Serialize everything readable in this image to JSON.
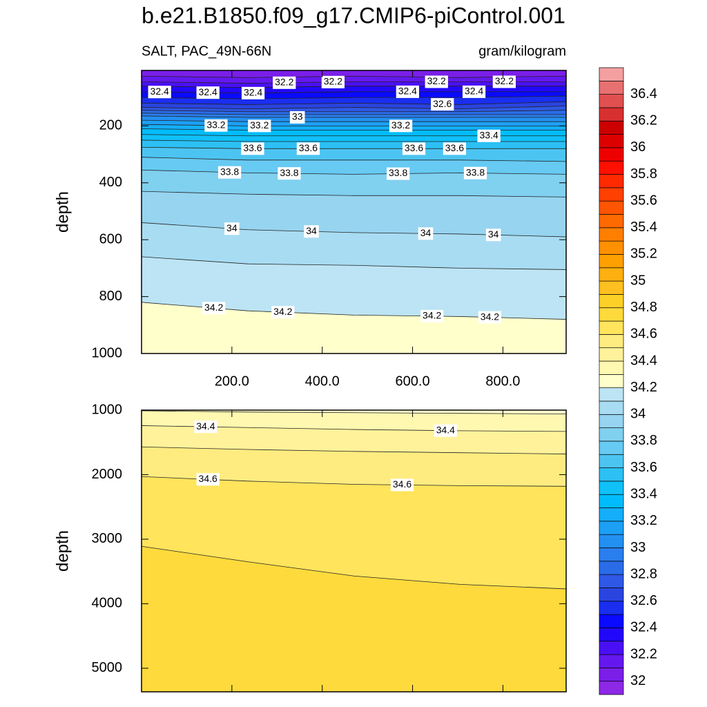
{
  "chart_data": [
    {
      "type": "contour",
      "title": "b.e21.B1850.f09_g17.CMIP6-piControl.001",
      "subtitle_left": "SALT, PAC_49N-66N",
      "subtitle_right": "gram/kilogram",
      "y_label": "depth",
      "xlim": [
        0,
        940
      ],
      "ylim": [
        5,
        1000
      ],
      "xticks": [
        {
          "value": 200,
          "label": "200.0"
        },
        {
          "value": 400,
          "label": "400.0"
        },
        {
          "value": 600,
          "label": "600.0"
        },
        {
          "value": 800,
          "label": "800.0"
        }
      ],
      "yticks": [
        200,
        400,
        600,
        800,
        1000
      ],
      "x": [
        0,
        235,
        470,
        705,
        940
      ],
      "contours": [
        {
          "level": 32.1,
          "depths": [
            25,
            30,
            25,
            30,
            25
          ]
        },
        {
          "level": 32.2,
          "depths": [
            45,
            50,
            45,
            45,
            45
          ],
          "label_x": [
            316,
            424,
            653,
            803
          ]
        },
        {
          "level": 32.3,
          "depths": [
            60,
            65,
            60,
            60,
            60
          ]
        },
        {
          "level": 32.4,
          "depths": [
            80,
            85,
            80,
            80,
            80
          ],
          "label_x": [
            40,
            147,
            247,
            589,
            736
          ]
        },
        {
          "level": 32.5,
          "depths": [
            100,
            105,
            100,
            100,
            95
          ]
        },
        {
          "level": 32.6,
          "depths": [
            120,
            125,
            120,
            125,
            115
          ],
          "label_x": [
            666
          ]
        },
        {
          "level": 32.7,
          "depths": [
            135,
            140,
            135,
            140,
            130
          ]
        },
        {
          "level": 32.8,
          "depths": [
            145,
            150,
            150,
            150,
            145
          ]
        },
        {
          "level": 32.9,
          "depths": [
            155,
            160,
            160,
            160,
            160
          ]
        },
        {
          "level": 33,
          "depths": [
            165,
            170,
            170,
            170,
            170
          ],
          "label_x": [
            345
          ]
        },
        {
          "level": 33.1,
          "depths": [
            180,
            185,
            185,
            185,
            185
          ]
        },
        {
          "level": 33.2,
          "depths": [
            195,
            200,
            200,
            200,
            200
          ],
          "label_x": [
            165,
            261,
            574
          ]
        },
        {
          "level": 33.3,
          "depths": [
            210,
            215,
            215,
            215,
            215
          ]
        },
        {
          "level": 33.4,
          "depths": [
            230,
            235,
            235,
            235,
            235
          ],
          "label_x": [
            769
          ]
        },
        {
          "level": 33.5,
          "depths": [
            250,
            255,
            255,
            255,
            255
          ]
        },
        {
          "level": 33.6,
          "depths": [
            275,
            280,
            280,
            280,
            280
          ],
          "label_x": [
            246,
            369,
            603,
            693
          ]
        },
        {
          "level": 33.7,
          "depths": [
            310,
            320,
            320,
            320,
            325
          ]
        },
        {
          "level": 33.8,
          "depths": [
            355,
            365,
            370,
            365,
            370
          ],
          "label_x": [
            195,
            327,
            568,
            739
          ]
        },
        {
          "level": 33.9,
          "depths": [
            430,
            440,
            445,
            445,
            450
          ]
        },
        {
          "level": 34,
          "depths": [
            540,
            565,
            575,
            580,
            590
          ],
          "label_x": [
            200,
            376,
            629,
            779
          ]
        },
        {
          "level": 34.1,
          "depths": [
            660,
            685,
            690,
            700,
            705
          ]
        },
        {
          "level": 34.2,
          "depths": [
            820,
            850,
            865,
            870,
            880
          ],
          "label_x": [
            160,
            313,
            643,
            771
          ]
        }
      ],
      "colorbar": {
        "levels": [
          31.9,
          32,
          32.1,
          32.2,
          32.3,
          32.4,
          32.5,
          32.6,
          32.7,
          32.8,
          32.9,
          33,
          33.1,
          33.2,
          33.3,
          33.4,
          33.5,
          33.6,
          33.7,
          33.8,
          33.9,
          34,
          34.1,
          34.2,
          34.3,
          34.4,
          34.5,
          34.6,
          34.7,
          34.8,
          34.9,
          35,
          35.1,
          35.2,
          35.3,
          35.4,
          35.5,
          35.6,
          35.7,
          35.8,
          35.9,
          36,
          36.1,
          36.2,
          36.3,
          36.4,
          36.5,
          36.6
        ],
        "colors": [
          "#8c28e6",
          "#7a1ee8",
          "#6418ef",
          "#4a10f5",
          "#2208fa",
          "#0a0aff",
          "#1a2ef0",
          "#2a44e0",
          "#2e58e6",
          "#2a6ce8",
          "#2a7eee",
          "#2290f2",
          "#1ca0f6",
          "#14aefa",
          "#00bcfc",
          "#10c0f8",
          "#2cc0f4",
          "#4cc4f2",
          "#66caf2",
          "#80d0f0",
          "#96d4f0",
          "#a8dcf2",
          "#bce4f4",
          "#ffffcc",
          "#fff8b0",
          "#fff29a",
          "#ffec80",
          "#ffe45c",
          "#ffda3c",
          "#fdd028",
          "#fdc020",
          "#fdb010",
          "#ffa000",
          "#ff9000",
          "#ff8000",
          "#ff6a00",
          "#ff5500",
          "#ff4000",
          "#ff2a00",
          "#ff1000",
          "#ee0000",
          "#dd0000",
          "#cc0000",
          "#d83030",
          "#e05050",
          "#e87070",
          "#f4a0a0"
        ],
        "labels": [
          32,
          32.2,
          32.4,
          32.6,
          32.8,
          33,
          33.2,
          33.4,
          33.6,
          33.8,
          34,
          34.2,
          34.4,
          34.6,
          34.8,
          35,
          35.2,
          35.4,
          35.6,
          35.8,
          36,
          36.2,
          36.4
        ]
      }
    },
    {
      "type": "contour",
      "y_label": "depth",
      "xlim": [
        0,
        940
      ],
      "ylim": [
        1000,
        5365
      ],
      "yticks": [
        1000,
        2000,
        3000,
        4000,
        5000
      ],
      "x": [
        0,
        235,
        470,
        705,
        940
      ],
      "contours": [
        {
          "level": 34.3,
          "depths": [
            1010,
            1030,
            1040,
            1050,
            1060
          ]
        },
        {
          "level": 34.4,
          "depths": [
            1240,
            1270,
            1300,
            1320,
            1330
          ],
          "label_x": [
            142,
            673
          ]
        },
        {
          "level": 34.5,
          "depths": [
            1570,
            1610,
            1640,
            1660,
            1680
          ]
        },
        {
          "level": 34.6,
          "depths": [
            2030,
            2100,
            2150,
            2170,
            2180
          ],
          "label_x": [
            147,
            577
          ]
        },
        {
          "level": 34.7,
          "depths": [
            3110,
            3350,
            3570,
            3700,
            3770
          ]
        }
      ]
    }
  ]
}
